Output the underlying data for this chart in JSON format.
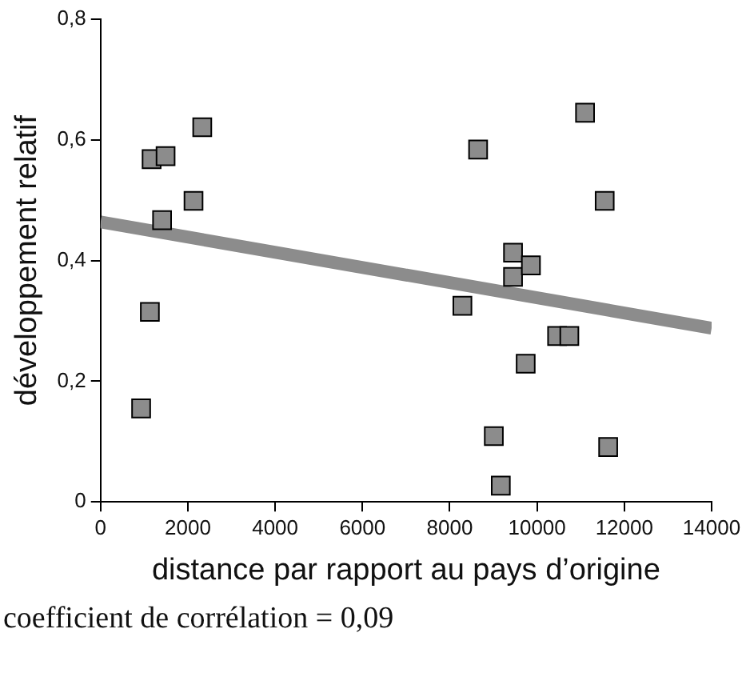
{
  "chart_data": {
    "type": "scatter",
    "xlabel": "distance par rapport au pays d’origine",
    "ylabel": "développement relatif",
    "annotations": [
      "coefficient de corrélation = 0,09"
    ],
    "xlim": [
      0,
      14000
    ],
    "xticks": [
      0,
      2000,
      4000,
      6000,
      8000,
      10000,
      12000,
      14000
    ],
    "ylim": [
      0,
      0.8
    ],
    "yticks": [
      0,
      {
        "value": 0.2,
        "label": "0,2"
      },
      {
        "value": 0.4,
        "label": "0,4"
      },
      {
        "value": 0.6,
        "label": "0,6"
      },
      {
        "value": 0.8,
        "label": "0,8"
      }
    ],
    "grid": false,
    "legend": false,
    "marker": "square",
    "series": [
      {
        "color": "#8c8c8c",
        "x": [
          930,
          1130,
          1170,
          1410,
          1490,
          2130,
          2330,
          8290,
          8650,
          9010,
          9170,
          9450,
          9450,
          9740,
          9860,
          10460,
          10740,
          11100,
          11550,
          11630
        ],
        "values": [
          0.155,
          0.315,
          0.568,
          0.467,
          0.573,
          0.499,
          0.621,
          0.325,
          0.584,
          0.109,
          0.027,
          0.413,
          0.373,
          0.229,
          0.392,
          0.275,
          0.275,
          0.645,
          0.499,
          0.091
        ]
      },
      {
        "type": "line",
        "color": "#8c8c8c",
        "marker": "none",
        "x": [
          0,
          14000
        ],
        "values": [
          0.464,
          0.288
        ]
      }
    ]
  }
}
